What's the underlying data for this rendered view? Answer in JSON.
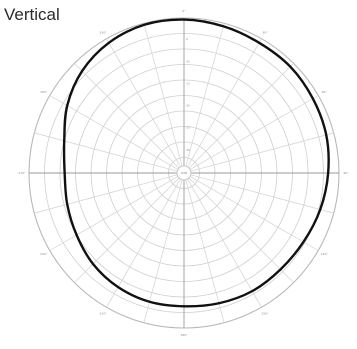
{
  "chart_data": {
    "type": "polar-line",
    "title": "Vertical",
    "grid": true,
    "r_range": [
      0,
      1
    ],
    "ring_count": 10,
    "spoke_step_deg": 15,
    "angle_labels": [
      {
        "theta": 0,
        "label": "0°"
      },
      {
        "theta": 30,
        "label": "30°"
      },
      {
        "theta": 60,
        "label": "60°"
      },
      {
        "theta": 90,
        "label": "90°"
      },
      {
        "theta": 120,
        "label": "120°"
      },
      {
        "theta": 150,
        "label": "150°"
      },
      {
        "theta": 180,
        "label": "180°"
      },
      {
        "theta": 210,
        "label": "210°"
      },
      {
        "theta": 240,
        "label": "240°"
      },
      {
        "theta": 270,
        "label": "270°"
      },
      {
        "theta": 300,
        "label": "300°"
      },
      {
        "theta": 330,
        "label": "330°"
      }
    ],
    "radial_labels": [
      "-5",
      "-10",
      "-15",
      "-20",
      "-25",
      "-30"
    ],
    "center_label": "0dBi",
    "series": [
      {
        "theta": [
          0,
          15,
          30,
          45,
          60,
          75,
          90,
          105,
          120,
          135,
          150,
          165,
          180,
          195,
          210,
          225,
          240,
          255,
          270,
          285,
          300,
          315,
          330,
          345
        ],
        "r": [
          0.99,
          0.98,
          0.97,
          0.97,
          0.96,
          0.95,
          0.93,
          0.91,
          0.89,
          0.88,
          0.88,
          0.87,
          0.86,
          0.86,
          0.85,
          0.83,
          0.8,
          0.78,
          0.77,
          0.8,
          0.87,
          0.93,
          0.97,
          0.99
        ]
      }
    ]
  }
}
